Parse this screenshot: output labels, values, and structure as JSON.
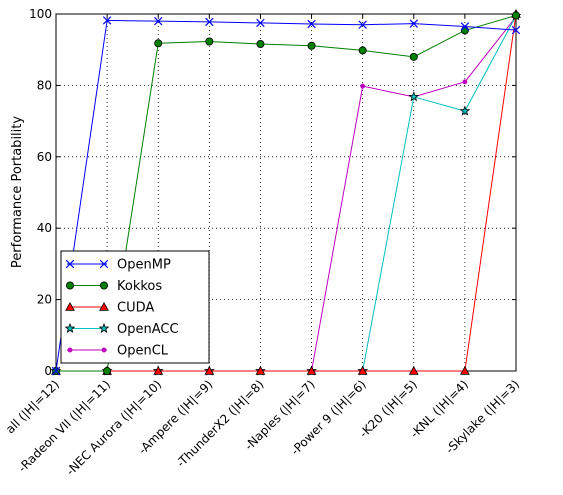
{
  "chart_data": {
    "type": "line",
    "ylabel": "Performance Portability",
    "xlabel": "",
    "ylim": [
      0,
      100
    ],
    "yticks": [
      0,
      20,
      40,
      60,
      80,
      100
    ],
    "grid": true,
    "legend_position": "bottom-left",
    "categories": [
      "all (|H|=12)",
      "-Radeon VII (|H|=11)",
      "-NEC Aurora (|H|=10)",
      "-Ampere (|H|=9)",
      "-ThunderX2 (|H|=8)",
      "-Naples (|H|=7)",
      "-Power 9 (|H|=6)",
      "-K20 (|H|=5)",
      "-KNL (|H|=4)",
      "-Skylake (|H|=3)"
    ],
    "series": [
      {
        "name": "OpenMP",
        "color": "#0000ff",
        "marker": "x",
        "values": [
          0,
          98.2,
          98.0,
          97.8,
          97.5,
          97.2,
          97.0,
          97.3,
          96.5,
          95.5
        ]
      },
      {
        "name": "Kokkos",
        "color": "#008000",
        "marker": "circle",
        "values": [
          0,
          0,
          91.8,
          92.3,
          91.6,
          91.1,
          89.8,
          88.0,
          95.4,
          99.6
        ]
      },
      {
        "name": "CUDA",
        "color": "#ff0000",
        "marker": "triangle",
        "values": [
          0,
          0,
          0,
          0,
          0,
          0,
          0,
          0,
          0,
          100
        ]
      },
      {
        "name": "OpenACC",
        "color": "#00bfbf",
        "marker": "star",
        "values": [
          0,
          0,
          0,
          0,
          0,
          0,
          0,
          76.8,
          72.8,
          99.5
        ]
      },
      {
        "name": "OpenCL",
        "color": "#bf00bf",
        "marker": "dot",
        "values": [
          0,
          0,
          0,
          0,
          0,
          0,
          79.8,
          76.8,
          81.0,
          99.2
        ]
      }
    ]
  }
}
